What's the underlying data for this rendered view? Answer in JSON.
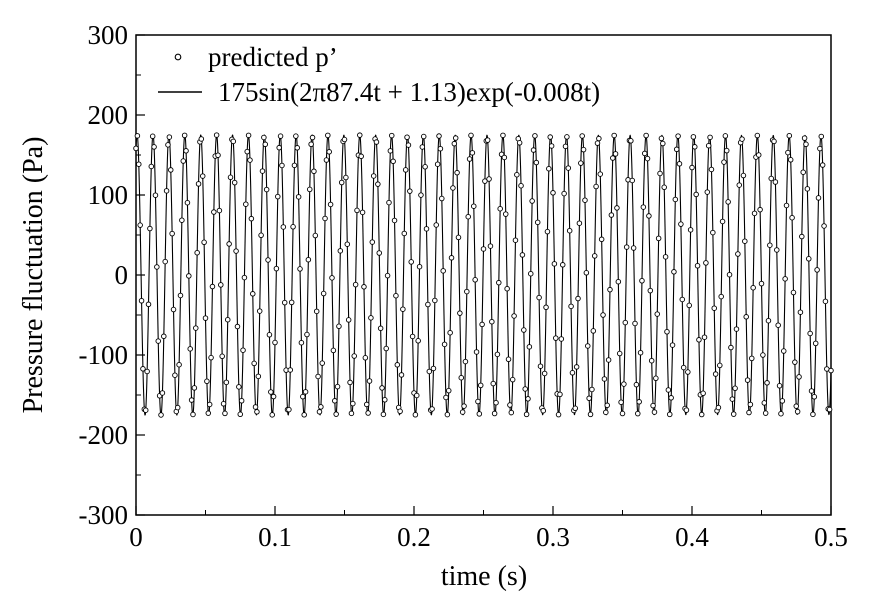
{
  "chart_data": {
    "type": "line",
    "title": "",
    "xlabel": "time (s)",
    "ylabel": "Pressure fluctuation (Pa)",
    "xlim": [
      0,
      0.5
    ],
    "ylim": [
      -300,
      300
    ],
    "x_ticks": [
      "0",
      "0.1",
      "0.2",
      "0.3",
      "0.4",
      "0.5"
    ],
    "y_ticks": [
      "300",
      "200",
      "100",
      "0",
      "-100",
      "-200",
      "-300"
    ],
    "grid": false,
    "legend_position": "top-left",
    "series": [
      {
        "name": "predicted p’",
        "style": "markers",
        "marker": "open-circle",
        "amplitude": 175,
        "frequency_hz": 87.4,
        "phase_rad": 1.13,
        "decay_rate": 0.008,
        "sample_interval_s": 0.001
      },
      {
        "name": "175sin(2π87.4t + 1.13)exp(-0.008t)",
        "style": "line",
        "amplitude": 175,
        "frequency_hz": 87.4,
        "phase_rad": 1.13,
        "decay_rate": 0.008
      }
    ]
  }
}
